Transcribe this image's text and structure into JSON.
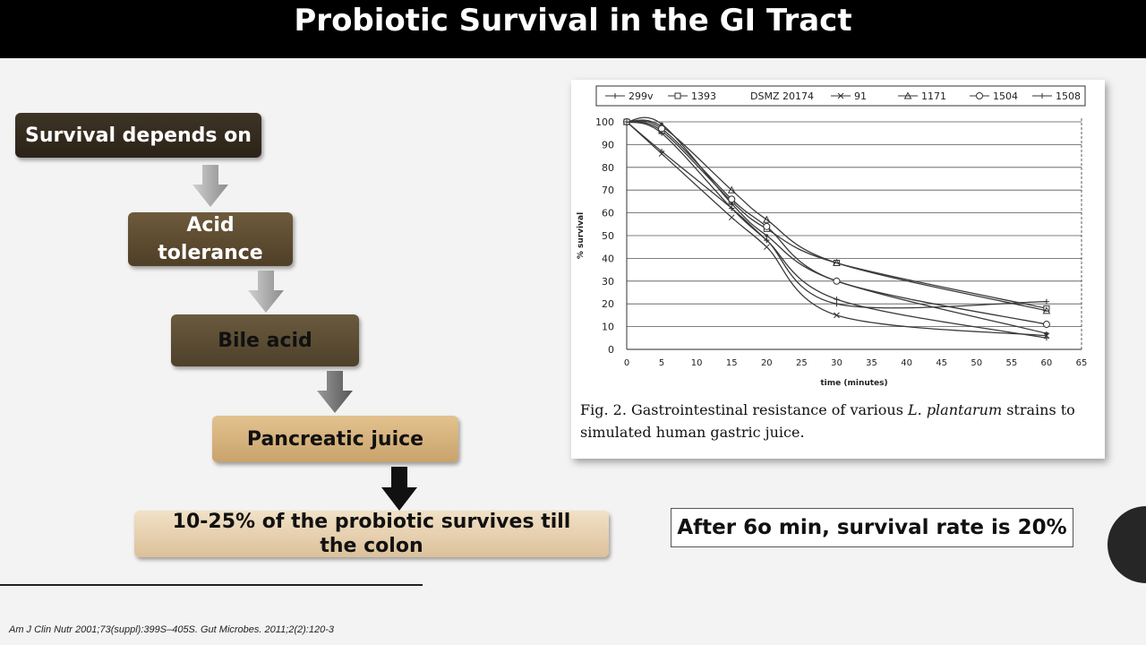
{
  "slide": {
    "title": "Probiotic Survival in the GI Tract",
    "flow": [
      {
        "label": "Survival depends on"
      },
      {
        "label": "Acid tolerance"
      },
      {
        "label": "Bile acid"
      },
      {
        "label": "Pancreatic juice"
      },
      {
        "label": "10-25% of the probiotic survives till the colon"
      }
    ],
    "callout": "After 6o min, survival rate is 20%",
    "reference": "Am J Clin Nutr 2001;73(suppl):399S–405S. Gut Microbes. 2011;2(2):120-3",
    "colors": {
      "title_bar": "#000000",
      "background": "#f3f3f3",
      "dark_box": "#3e3426",
      "tan_box": "#d4b07a",
      "pale_box": "#ead6b4"
    }
  },
  "chart_data": {
    "type": "line",
    "xlabel": "time (minutes)",
    "ylabel": "% survival",
    "xlim": [
      0,
      65
    ],
    "ylim": [
      0,
      100
    ],
    "x_ticks": [
      0,
      5,
      10,
      15,
      20,
      25,
      30,
      35,
      40,
      45,
      50,
      55,
      60,
      65
    ],
    "y_ticks": [
      0,
      10,
      20,
      30,
      40,
      50,
      60,
      70,
      80,
      90,
      100
    ],
    "grid": true,
    "legend_position": "top",
    "caption_prefix": "Fig. 2. Gastrointestinal resistance of various",
    "caption_species": "L. plantarum",
    "caption_suffix": "strains to",
    "caption_line2": "simulated human gastric juice.",
    "series": [
      {
        "name": "299v",
        "x": [
          0,
          5,
          15,
          20,
          30,
          60
        ],
        "y": [
          100,
          87,
          62,
          48,
          20,
          21
        ]
      },
      {
        "name": "1393",
        "x": [
          0,
          5,
          15,
          20,
          30,
          60
        ],
        "y": [
          100,
          96,
          65,
          53,
          38,
          18
        ]
      },
      {
        "name": "DSMZ 20174",
        "x": [
          0,
          5,
          15,
          20,
          30,
          60
        ],
        "y": [
          100,
          99,
          64,
          50,
          30,
          7
        ]
      },
      {
        "name": "91",
        "x": [
          0,
          5,
          15,
          20,
          30,
          60
        ],
        "y": [
          100,
          86,
          58,
          45,
          15,
          6
        ]
      },
      {
        "name": "1171",
        "x": [
          0,
          5,
          15,
          20,
          30,
          60
        ],
        "y": [
          100,
          98,
          70,
          57,
          38,
          17
        ]
      },
      {
        "name": "1504",
        "x": [
          0,
          5,
          15,
          20,
          30,
          60
        ],
        "y": [
          100,
          97,
          66,
          54,
          30,
          11
        ]
      },
      {
        "name": "1508",
        "x": [
          0,
          5,
          15,
          20,
          30,
          60
        ],
        "y": [
          100,
          95,
          62,
          48,
          22,
          5
        ]
      }
    ]
  }
}
